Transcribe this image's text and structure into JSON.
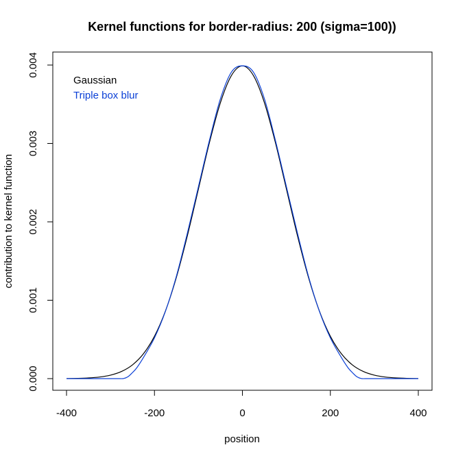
{
  "chart_data": {
    "type": "line",
    "title": "Kernel functions for border-radius: 200 (sigma=100))",
    "xlabel": "position",
    "ylabel": "contribution to kernel function",
    "xlim": [
      -400,
      400
    ],
    "ylim": [
      0,
      0.004
    ],
    "x_ticks": [
      -400,
      -200,
      0,
      200,
      400
    ],
    "x_tick_labels": [
      "-400",
      "-200",
      "0",
      "200",
      "400"
    ],
    "y_ticks": [
      0,
      0.001,
      0.002,
      0.003,
      0.004
    ],
    "y_tick_labels": [
      "0.000",
      "0.001",
      "0.002",
      "0.003",
      "0.004"
    ],
    "legend_position": "top-left",
    "grid": false,
    "series": [
      {
        "name": "Gaussian",
        "color": "#000000",
        "x": [
          -400,
          -375,
          -350,
          -325,
          -300,
          -275,
          -250,
          -225,
          -200,
          -175,
          -150,
          -125,
          -100,
          -75,
          -50,
          -25,
          0,
          25,
          50,
          75,
          100,
          125,
          150,
          175,
          200,
          225,
          250,
          275,
          300,
          325,
          350,
          375,
          400
        ],
        "values": [
          1.3e-06,
          3.6e-06,
          8.7e-06,
          2.02e-05,
          4.43e-05,
          9.1e-05,
          0.0001753,
          0.0003174,
          0.0005399,
          0.0008628,
          0.0012952,
          0.0018265,
          0.0024197,
          0.0030114,
          0.0035207,
          0.0038667,
          0.0039894,
          0.0038667,
          0.0035207,
          0.0030114,
          0.0024197,
          0.0018265,
          0.0012952,
          0.0008628,
          0.0005399,
          0.0003174,
          0.0001753,
          9.1e-05,
          4.43e-05,
          2.02e-05,
          8.7e-06,
          3.6e-06,
          1.3e-06
        ]
      },
      {
        "name": "Triple box blur",
        "color": "#0a3fd6",
        "x": [
          -400,
          -350,
          -300,
          -280,
          -270,
          -260,
          -250,
          -240,
          -225,
          -200,
          -175,
          -150,
          -125,
          -100,
          -75,
          -50,
          -25,
          0,
          25,
          50,
          75,
          100,
          125,
          150,
          175,
          200,
          225,
          240,
          250,
          260,
          270,
          280,
          300,
          350,
          400
        ],
        "values": [
          0,
          0,
          0,
          0,
          1.5e-06,
          2.5e-05,
          7.75e-05,
          0.00014,
          0.00027,
          0.00052,
          0.00086,
          0.00131,
          0.00186,
          0.00245,
          0.00304,
          0.00357,
          0.00391,
          0.00399,
          0.00391,
          0.00357,
          0.00304,
          0.00245,
          0.00186,
          0.00131,
          0.00086,
          0.00052,
          0.00027,
          0.00014,
          7.75e-05,
          2.5e-05,
          1.5e-06,
          0,
          0,
          0,
          0
        ]
      }
    ]
  }
}
